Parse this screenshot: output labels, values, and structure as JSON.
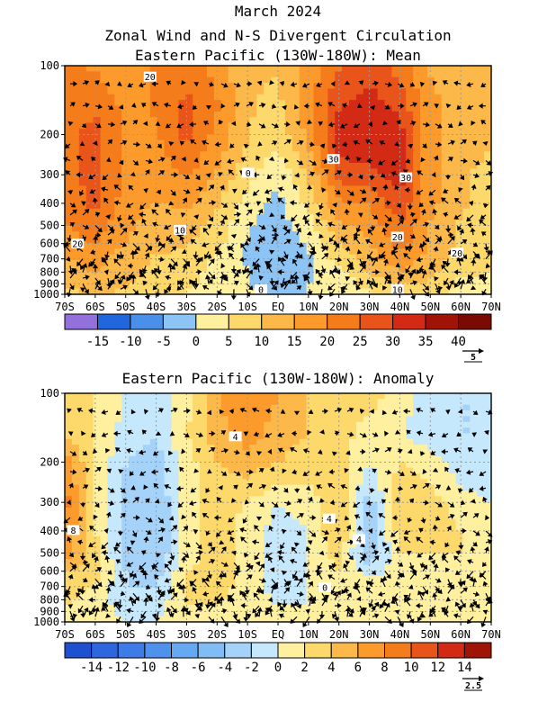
{
  "figure": {
    "title": "March 2024",
    "subtitle": "Zonal Wind and N-S Divergent Circulation"
  },
  "chart_data": [
    {
      "type": "heatmap",
      "title": "Eastern Pacific (130W-180W): Mean",
      "x_ticks": [
        "70S",
        "60S",
        "50S",
        "40S",
        "30S",
        "20S",
        "10S",
        "EQ",
        "10N",
        "20N",
        "30N",
        "40N",
        "50N",
        "60N",
        "70N"
      ],
      "y_ticks": [
        "100",
        "200",
        "300",
        "400",
        "500",
        "600",
        "700",
        "800",
        "900",
        "1000"
      ],
      "y_scale": "log-pressure",
      "grid": true,
      "colorbar": {
        "labels": [
          "-15",
          "-10",
          "-5",
          "0",
          "5",
          "10",
          "15",
          "20",
          "25",
          "30",
          "35",
          "40"
        ],
        "colors": [
          "#9370db",
          "#2166dc",
          "#4a90e8",
          "#8cc4f5",
          "#fff0a0",
          "#fdd86a",
          "#fdb84a",
          "#fc9a2b",
          "#f57c1a",
          "#e8541a",
          "#d22a14",
          "#a01408",
          "#7a0a04"
        ]
      },
      "vector_ref": "5",
      "contour_labels": [
        "20",
        "20",
        "30",
        "30",
        "0",
        "10",
        "20",
        "20",
        "10",
        "0"
      ],
      "field": {
        "lat": [
          -70,
          -60,
          -50,
          -40,
          -30,
          -20,
          -10,
          0,
          10,
          20,
          30,
          40,
          50,
          60,
          70
        ],
        "p": [
          100,
          150,
          200,
          300,
          400,
          500,
          600,
          700,
          850,
          1000
        ],
        "u": [
          [
            18,
            17,
            14,
            18,
            20,
            16,
            8,
            8,
            14,
            22,
            26,
            20,
            12,
            10,
            8
          ],
          [
            20,
            22,
            16,
            18,
            24,
            18,
            8,
            6,
            16,
            27,
            30,
            26,
            14,
            10,
            8
          ],
          [
            21,
            24,
            16,
            17,
            24,
            16,
            8,
            4,
            14,
            30,
            32,
            30,
            14,
            10,
            8
          ],
          [
            20,
            25,
            16,
            14,
            18,
            12,
            4,
            -2,
            8,
            25,
            26,
            30,
            14,
            8,
            6
          ],
          [
            18,
            24,
            15,
            12,
            14,
            8,
            0,
            -4,
            4,
            16,
            18,
            26,
            14,
            8,
            6
          ],
          [
            17,
            20,
            14,
            10,
            10,
            6,
            -2,
            -5,
            0,
            12,
            14,
            22,
            12,
            7,
            5
          ],
          [
            14,
            18,
            12,
            9,
            8,
            4,
            -3,
            -6,
            -2,
            8,
            12,
            20,
            12,
            6,
            4
          ],
          [
            12,
            14,
            10,
            7,
            6,
            2,
            -3,
            -8,
            -3,
            4,
            10,
            16,
            10,
            5,
            4
          ],
          [
            10,
            12,
            9,
            6,
            4,
            0,
            -2,
            -7,
            -3,
            0,
            6,
            10,
            8,
            2,
            2
          ],
          [
            6,
            8,
            6,
            4,
            2,
            0,
            -2,
            -4,
            -2,
            -1,
            2,
            4,
            4,
            0,
            0
          ]
        ]
      }
    },
    {
      "type": "heatmap",
      "title": "Eastern Pacific (130W-180W): Anomaly",
      "x_ticks": [
        "70S",
        "60S",
        "50S",
        "40S",
        "30S",
        "20S",
        "10S",
        "EQ",
        "10N",
        "20N",
        "30N",
        "40N",
        "50N",
        "60N",
        "70N"
      ],
      "y_ticks": [
        "100",
        "200",
        "300",
        "400",
        "500",
        "600",
        "700",
        "800",
        "900",
        "1000"
      ],
      "y_scale": "log-pressure",
      "grid": true,
      "colorbar": {
        "labels": [
          "-14",
          "-12",
          "-10",
          "-8",
          "-6",
          "-4",
          "-2",
          "0",
          "2",
          "4",
          "6",
          "8",
          "10",
          "12",
          "14"
        ],
        "colors": [
          "#1e50d2",
          "#2e66e0",
          "#3d7ce8",
          "#4f92ee",
          "#66a8f2",
          "#82bcf4",
          "#a4d2f8",
          "#c6e8fc",
          "#fff0a0",
          "#fdd86a",
          "#fdb84a",
          "#fc9a2b",
          "#f57c1a",
          "#e8541a",
          "#d22a14",
          "#a01408"
        ]
      },
      "vector_ref": "2.5",
      "contour_labels": [
        "4",
        "8",
        "4",
        "4",
        "0"
      ],
      "field": {
        "lat": [
          -70,
          -60,
          -50,
          -40,
          -30,
          -20,
          -10,
          0,
          10,
          20,
          30,
          40,
          50,
          60,
          70
        ],
        "p": [
          100,
          150,
          200,
          300,
          400,
          500,
          600,
          700,
          850,
          1000
        ],
        "u": [
          [
            2,
            1,
            -1,
            -2,
            0,
            5,
            7,
            5,
            3,
            1,
            2,
            0,
            -2,
            -3,
            -3
          ],
          [
            3,
            1,
            -2,
            -3,
            1,
            4,
            6,
            4,
            3,
            2,
            0,
            -1,
            -2,
            -3,
            -3
          ],
          [
            6,
            1,
            -3,
            -4,
            0,
            3,
            4,
            3,
            2,
            2,
            -1,
            1,
            0,
            -2,
            -3
          ],
          [
            8,
            1,
            -4,
            -5,
            0,
            2,
            1,
            -1,
            0,
            3,
            -4,
            3,
            2,
            0,
            -1
          ],
          [
            7,
            1,
            -4,
            -5,
            0,
            2,
            0,
            -2,
            -1,
            3,
            -5,
            2,
            2,
            1,
            0
          ],
          [
            6,
            2,
            -4,
            -5,
            0,
            2,
            0,
            -2,
            -1,
            2,
            -5,
            1,
            1,
            1,
            0
          ],
          [
            3,
            2,
            -3,
            -4,
            1,
            2,
            0,
            -2,
            -1,
            1,
            -2,
            0,
            1,
            0,
            0
          ],
          [
            2,
            1,
            -3,
            -3,
            1,
            2,
            0,
            -2,
            -1,
            0,
            0,
            0,
            0,
            0,
            0
          ],
          [
            1,
            0,
            -2,
            -2,
            1,
            1,
            0,
            -1,
            -1,
            0,
            0,
            0,
            0,
            0,
            0
          ],
          [
            0,
            0,
            -1,
            -1,
            0,
            0,
            0,
            0,
            0,
            0,
            0,
            0,
            0,
            0,
            0
          ]
        ]
      }
    }
  ]
}
